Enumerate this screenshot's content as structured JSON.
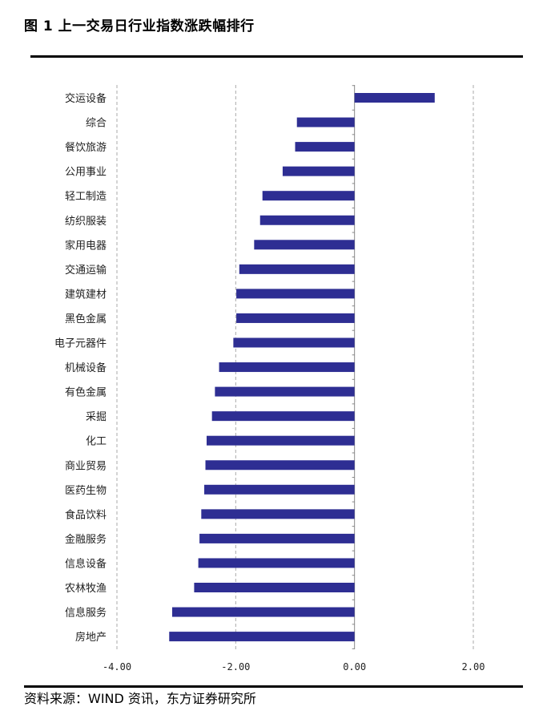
{
  "header": {
    "title": "图 1  上一交易日行业指数涨跌幅排行"
  },
  "footer": {
    "source": "资料来源：WIND 资讯，东方证券研究所"
  },
  "colors": {
    "bar": "#2e2e93",
    "grid": "#aaaaaa",
    "axis": "#888888"
  },
  "chart_data": {
    "type": "bar",
    "orientation": "horizontal",
    "title": "",
    "xlabel": "",
    "ylabel": "",
    "xlim": [
      -4.0,
      2.0
    ],
    "x_ticks": [
      -4.0,
      -2.0,
      0.0,
      2.0
    ],
    "x_tick_labels": [
      "-4.00",
      "-2.00",
      "0.00",
      "2.00"
    ],
    "grid": "vertical dashed",
    "legend": "none",
    "categories": [
      "交运设备",
      "综合",
      "餐饮旅游",
      "公用事业",
      "轻工制造",
      "纺织服装",
      "家用电器",
      "交通运输",
      "建筑建材",
      "黑色金属",
      "电子元器件",
      "机械设备",
      "有色金属",
      "采掘",
      "化工",
      "商业贸易",
      "医药生物",
      "食品饮料",
      "金融服务",
      "信息设备",
      "农林牧渔",
      "信息服务",
      "房地产"
    ],
    "values": [
      1.35,
      -0.97,
      -1.0,
      -1.21,
      -1.55,
      -1.59,
      -1.69,
      -1.94,
      -1.99,
      -1.99,
      -2.04,
      -2.28,
      -2.35,
      -2.4,
      -2.49,
      -2.51,
      -2.53,
      -2.58,
      -2.61,
      -2.63,
      -2.7,
      -3.07,
      -3.12
    ]
  }
}
